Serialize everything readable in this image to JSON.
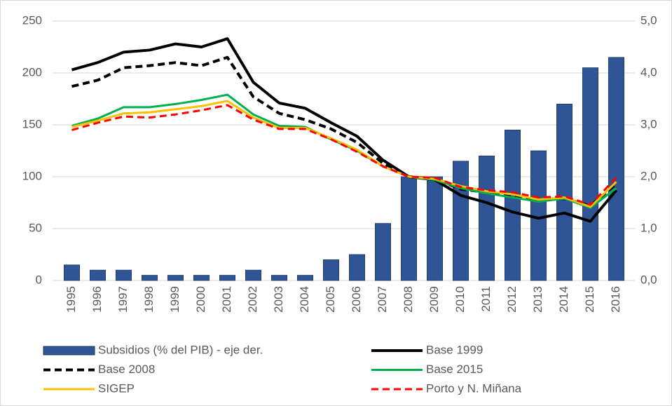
{
  "chart_data": {
    "type": "bar",
    "categories": [
      "1995",
      "1996",
      "1997",
      "1998",
      "1999",
      "2000",
      "2001",
      "2002",
      "2003",
      "2004",
      "2005",
      "2006",
      "2007",
      "2008",
      "2009",
      "2010",
      "2011",
      "2012",
      "2013",
      "2014",
      "2015",
      "2016"
    ],
    "series": [
      {
        "name": "Subsidios (% del PIB) - eje der.",
        "type": "bar",
        "axis": "y2",
        "color": "#2f5597",
        "values": [
          0.3,
          0.2,
          0.2,
          0.1,
          0.1,
          0.1,
          0.1,
          0.2,
          0.1,
          0.1,
          0.4,
          0.5,
          1.1,
          2.0,
          2.0,
          2.3,
          2.4,
          2.9,
          2.5,
          3.4,
          4.1,
          4.3
        ]
      },
      {
        "name": "Base 1999",
        "type": "line",
        "color": "#000000",
        "dashed": false,
        "values": [
          203,
          210,
          220,
          222,
          228,
          225,
          233,
          191,
          171,
          166,
          152,
          139,
          116,
          100,
          97,
          82,
          75,
          66,
          60,
          65,
          57,
          87
        ]
      },
      {
        "name": "Base 2008",
        "type": "line",
        "color": "#000000",
        "dashed": true,
        "values": [
          187,
          193,
          205,
          207,
          210,
          207,
          215,
          177,
          161,
          155,
          146,
          133,
          113,
          100,
          98,
          88,
          85,
          81,
          77,
          79,
          72,
          93
        ]
      },
      {
        "name": "Base 2015",
        "type": "line",
        "color": "#00b050",
        "dashed": false,
        "values": [
          149,
          156,
          167,
          167,
          170,
          174,
          179,
          160,
          149,
          148,
          136,
          125,
          110,
          100,
          97,
          89,
          84,
          80,
          76,
          79,
          70,
          89
        ]
      },
      {
        "name": "SIGEP",
        "type": "line",
        "color": "#ffc000",
        "dashed": false,
        "values": [
          148,
          154,
          161,
          162,
          165,
          168,
          173,
          157,
          147,
          147,
          137,
          126,
          110,
          100,
          98,
          91,
          86,
          83,
          78,
          80,
          71,
          95
        ]
      },
      {
        "name": "Porto y N. Miñana",
        "type": "line",
        "color": "#ff0000",
        "dashed": true,
        "values": [
          145,
          152,
          158,
          157,
          160,
          164,
          169,
          155,
          146,
          146,
          136,
          124,
          110,
          100,
          99,
          90,
          87,
          85,
          80,
          81,
          73,
          99
        ]
      }
    ],
    "ylim": [
      0,
      250
    ],
    "yticks": [
      0,
      50,
      100,
      150,
      200,
      250
    ],
    "y2lim": [
      0,
      5
    ],
    "y2ticks": [
      {
        "value": 0,
        "label": "0,0"
      },
      {
        "value": 1,
        "label": "1,0"
      },
      {
        "value": 2,
        "label": "2,0"
      },
      {
        "value": 3,
        "label": "3,0"
      },
      {
        "value": 4,
        "label": "4,0"
      },
      {
        "value": 5,
        "label": "5,0"
      }
    ],
    "grid": true
  }
}
